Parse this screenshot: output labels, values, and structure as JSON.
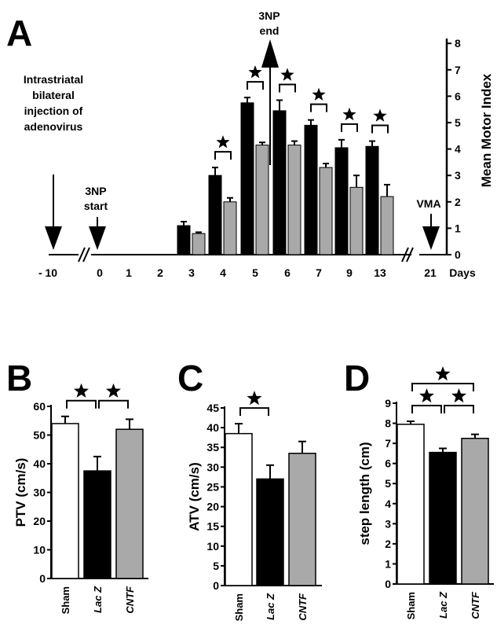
{
  "colors": {
    "black": "#000000",
    "gray": "#a9a9a9",
    "white": "#ffffff"
  },
  "chart_data": [
    {
      "panel": "A",
      "type": "bar",
      "x_labels": [
        "- 10",
        "0",
        "1",
        "2",
        "3",
        "4",
        "5",
        "6",
        "7",
        "9",
        "13",
        "21"
      ],
      "x_unit": "Days",
      "categories": [
        "3",
        "4",
        "5",
        "6",
        "7",
        "9",
        "13"
      ],
      "series": [
        {
          "color": "black",
          "values": [
            1.1,
            3.0,
            5.75,
            5.45,
            4.9,
            4.05,
            4.1
          ],
          "errors": [
            0.15,
            0.3,
            0.2,
            0.4,
            0.2,
            0.3,
            0.2
          ]
        },
        {
          "color": "gray",
          "values": [
            0.8,
            2.0,
            4.15,
            4.15,
            3.3,
            2.55,
            2.2
          ],
          "errors": [
            0.05,
            0.15,
            0.1,
            0.15,
            0.15,
            0.45,
            0.45
          ]
        }
      ],
      "ylabel": "Mean Motor Index",
      "ylim": [
        0,
        8
      ],
      "y_ticks": [
        "0",
        "1",
        "2",
        "3",
        "4",
        "5",
        "6",
        "7",
        "8"
      ],
      "y_axis_side": "right",
      "significance_days": [
        "4",
        "5",
        "6",
        "7",
        "9",
        "13"
      ],
      "annotations": {
        "inject_line1": "Intrastriatal",
        "inject_line2": "bilateral",
        "inject_line3": "injection of",
        "inject_line4": "adenovirus",
        "start_line1": "3NP",
        "start_line2": "start",
        "end_line1": "3NP",
        "end_line2": "end",
        "vma": "VMA"
      }
    },
    {
      "panel": "B",
      "type": "bar",
      "categories": [
        "Sham",
        "Lac Z",
        "CNTF"
      ],
      "values": [
        54,
        37.5,
        52
      ],
      "errors": [
        2.5,
        5,
        3.5
      ],
      "bar_colors": [
        "white",
        "black",
        "gray"
      ],
      "ylabel": "PTV (cm/s)",
      "ylim": [
        0,
        60
      ],
      "y_ticks": [
        "0",
        "10",
        "20",
        "30",
        "40",
        "50",
        "60"
      ],
      "significance_pairs": [
        [
          "Sham",
          "Lac Z"
        ],
        [
          "Lac Z",
          "CNTF"
        ]
      ]
    },
    {
      "panel": "C",
      "type": "bar",
      "categories": [
        "Sham",
        "Lac Z",
        "CNTF"
      ],
      "values": [
        38.5,
        27,
        33.5
      ],
      "errors": [
        2.5,
        3.5,
        3
      ],
      "bar_colors": [
        "white",
        "black",
        "gray"
      ],
      "ylabel": "ATV (cm/s)",
      "ylim": [
        0,
        45
      ],
      "y_ticks": [
        "0",
        "5",
        "10",
        "15",
        "20",
        "25",
        "30",
        "35",
        "40",
        "45"
      ],
      "significance_pairs": [
        [
          "Sham",
          "Lac Z"
        ]
      ]
    },
    {
      "panel": "D",
      "type": "bar",
      "categories": [
        "Sham",
        "Lac Z",
        "CNTF"
      ],
      "values": [
        7.95,
        6.55,
        7.25
      ],
      "errors": [
        0.15,
        0.2,
        0.2
      ],
      "bar_colors": [
        "white",
        "black",
        "gray"
      ],
      "ylabel": "step length (cm)",
      "ylim": [
        0,
        9
      ],
      "y_ticks": [
        "0",
        "1",
        "2",
        "3",
        "4",
        "5",
        "6",
        "7",
        "8",
        "9"
      ],
      "significance_pairs": [
        [
          "Sham",
          "Lac Z"
        ],
        [
          "Lac Z",
          "CNTF"
        ],
        [
          "Sham",
          "CNTF"
        ]
      ]
    }
  ]
}
